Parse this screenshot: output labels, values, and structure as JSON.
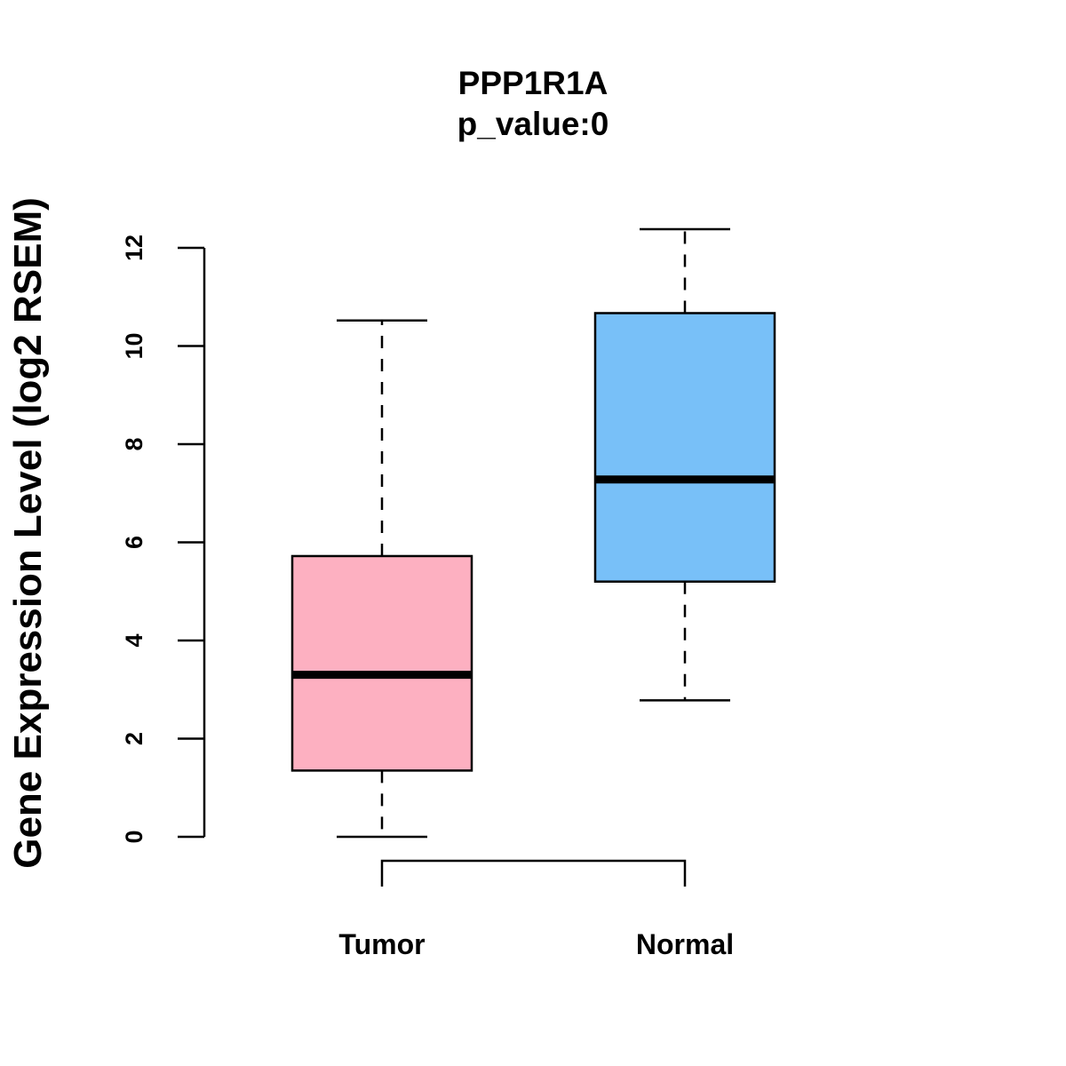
{
  "chart_data": {
    "type": "box",
    "title": "PPP1R1A",
    "subtitle": "p_value:0",
    "xlabel": "",
    "ylabel": "Gene Expression Level (log2 RSEM)",
    "ylim": [
      0,
      12
    ],
    "yticks": [
      0,
      2,
      4,
      6,
      8,
      10,
      12
    ],
    "grid": false,
    "categories": [
      "Tumor",
      "Normal"
    ],
    "boxes": [
      {
        "category": "Tumor",
        "min": 0.0,
        "q1": 1.35,
        "median": 3.3,
        "q3": 5.72,
        "max": 10.52,
        "color": "#FDB0C1"
      },
      {
        "category": "Normal",
        "min": 2.78,
        "q1": 5.2,
        "median": 7.28,
        "q3": 10.67,
        "max": 12.38,
        "color": "#78C0F8"
      }
    ],
    "comparison_bracket": [
      "Tumor",
      "Normal"
    ]
  }
}
